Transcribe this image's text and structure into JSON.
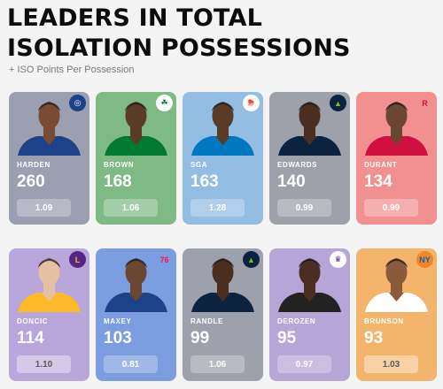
{
  "header": {
    "title_line1": "LEADERS IN TOTAL",
    "title_line2": "ISOLATION POSSESSIONS",
    "subtitle": "+ ISO Points Per Possession"
  },
  "players": [
    {
      "name": "HARDEN",
      "value": "260",
      "ppp": "1.09",
      "color": "#9b9fb0",
      "logo": "clippers-logo-icon"
    },
    {
      "name": "BROWN",
      "value": "168",
      "ppp": "1.06",
      "color": "#7fba84",
      "logo": "celtics-logo-icon"
    },
    {
      "name": "SGA",
      "value": "163",
      "ppp": "1.28",
      "color": "#93bde3",
      "logo": "thunder-logo-icon"
    },
    {
      "name": "EDWARDS",
      "value": "140",
      "ppp": "0.99",
      "color": "#9ea0aa",
      "logo": "timberwolves-logo-icon"
    },
    {
      "name": "DURANT",
      "value": "134",
      "ppp": "0.99",
      "color": "#f29090",
      "logo": "rockets-logo-icon"
    },
    {
      "name": "DONCIC",
      "value": "114",
      "ppp": "1.10",
      "color": "#b9a6da",
      "logo": "lakers-logo-icon"
    },
    {
      "name": "MAXEY",
      "value": "103",
      "ppp": "0.81",
      "color": "#7c9de0",
      "logo": "76ers-logo-icon"
    },
    {
      "name": "RANDLE",
      "value": "99",
      "ppp": "1.06",
      "color": "#9ea1ab",
      "logo": "timberwolves-logo-icon"
    },
    {
      "name": "DEROZEN",
      "value": "95",
      "ppp": "0.97",
      "color": "#b6a6d8",
      "logo": "kings-logo-icon"
    },
    {
      "name": "BRUNSON",
      "value": "93",
      "ppp": "1.03",
      "color": "#f4b46c",
      "logo": "knicks-logo-icon"
    }
  ]
}
